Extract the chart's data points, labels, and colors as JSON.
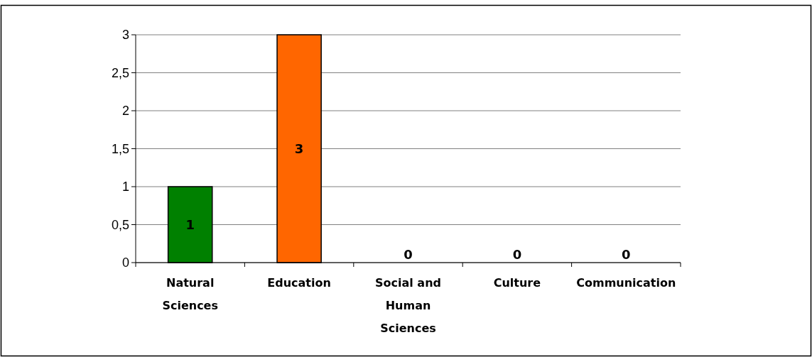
{
  "chart_data": {
    "type": "bar",
    "categories": [
      "Natural Sciences",
      "Education",
      "Social and Human Sciences",
      "Culture",
      "Communication"
    ],
    "values": [
      1,
      3,
      0,
      0,
      0
    ],
    "colors": [
      "#008000",
      "#ff6600",
      "#00c0c0",
      "#600060",
      "#c0c000"
    ],
    "ylim": [
      0,
      3
    ],
    "yticks": [
      0,
      {
        "value": 0.5,
        "label": "0,5"
      },
      1,
      {
        "value": 1.5,
        "label": "1,5"
      },
      2,
      {
        "value": 2.5,
        "label": "2,5"
      },
      3
    ],
    "grid": "y",
    "data_labels": true
  }
}
